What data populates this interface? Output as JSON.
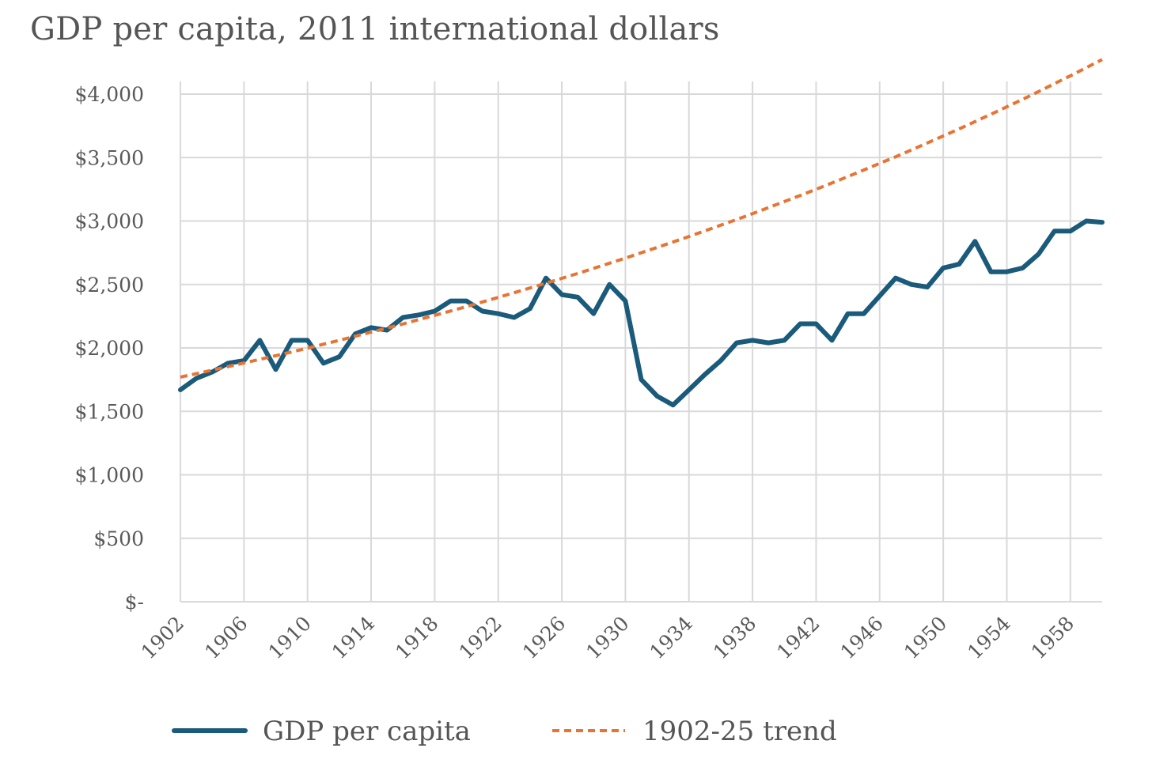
{
  "chart_data": {
    "type": "line",
    "title": "GDP per capita, 2011 international dollars",
    "xlabel": "",
    "ylabel": "",
    "xlim": [
      1902,
      1960
    ],
    "ylim": [
      0,
      4000
    ],
    "y_ticks": [
      0,
      500,
      1000,
      1500,
      2000,
      2500,
      3000,
      3500,
      4000
    ],
    "y_tick_labels": [
      "$-",
      "$500",
      "$1,000",
      "$1,500",
      "$2,000",
      "$2,500",
      "$3,000",
      "$3,500",
      "$4,000"
    ],
    "x_ticks": [
      1902,
      1906,
      1910,
      1914,
      1918,
      1922,
      1926,
      1930,
      1934,
      1938,
      1942,
      1946,
      1950,
      1954,
      1958
    ],
    "x_tick_labels": [
      "1902",
      "1906",
      "1910",
      "1914",
      "1918",
      "1922",
      "1926",
      "1930",
      "1934",
      "1938",
      "1942",
      "1946",
      "1950",
      "1954",
      "1958"
    ],
    "grid": true,
    "legend_position": "bottom",
    "x": [
      1902,
      1903,
      1904,
      1905,
      1906,
      1907,
      1908,
      1909,
      1910,
      1911,
      1912,
      1913,
      1914,
      1915,
      1916,
      1917,
      1918,
      1919,
      1920,
      1921,
      1922,
      1923,
      1924,
      1925,
      1926,
      1927,
      1928,
      1929,
      1930,
      1931,
      1932,
      1933,
      1934,
      1935,
      1936,
      1937,
      1938,
      1939,
      1940,
      1941,
      1942,
      1943,
      1944,
      1945,
      1946,
      1947,
      1948,
      1949,
      1950,
      1951,
      1952,
      1953,
      1954,
      1955,
      1956,
      1957,
      1958,
      1959,
      1960
    ],
    "series": [
      {
        "name": "GDP per capita",
        "color": "#1a5a7a",
        "style": "solid",
        "values": [
          1670,
          1760,
          1810,
          1880,
          1900,
          2060,
          1830,
          2060,
          2060,
          1880,
          1930,
          2110,
          2160,
          2140,
          2240,
          2260,
          2290,
          2370,
          2370,
          2290,
          2270,
          2240,
          2310,
          2550,
          2420,
          2400,
          2270,
          2500,
          2370,
          1750,
          1620,
          1550,
          1670,
          1790,
          1900,
          2040,
          2060,
          2040,
          2060,
          2190,
          2190,
          2060,
          2270,
          2270,
          2410,
          2550,
          2500,
          2480,
          2630,
          2660,
          2840,
          2600,
          2600,
          2630,
          2740,
          2920,
          2920,
          3000,
          2990
        ]
      },
      {
        "name": "1902-25 trend",
        "color": "#e87433",
        "style": "dashed",
        "values": [
          1770,
          1797,
          1825,
          1853,
          1881,
          1910,
          1939,
          1968,
          1998,
          2029,
          2060,
          2092,
          2124,
          2156,
          2189,
          2223,
          2257,
          2291,
          2326,
          2362,
          2398,
          2435,
          2472,
          2510,
          2548,
          2587,
          2627,
          2667,
          2708,
          2750,
          2792,
          2835,
          2878,
          2922,
          2967,
          3012,
          3058,
          3105,
          3153,
          3201,
          3250,
          3300,
          3350,
          3402,
          3454,
          3506,
          3560,
          3615,
          3670,
          3726,
          3783,
          3841,
          3900,
          3959,
          4020,
          4082,
          4144,
          4208,
          4272
        ]
      }
    ]
  }
}
